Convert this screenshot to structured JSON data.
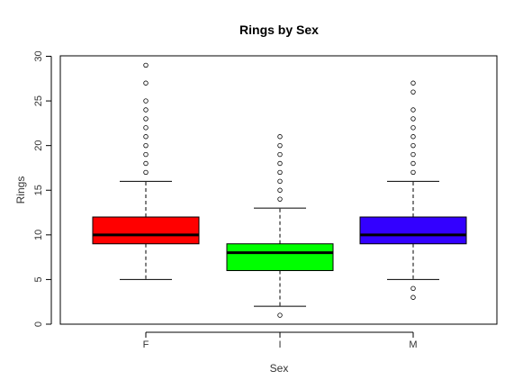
{
  "chart_data": {
    "type": "boxplot",
    "title": "Rings by Sex",
    "xlabel": "Sex",
    "ylabel": "Rings",
    "ylim": [
      0,
      30
    ],
    "yticks": [
      0,
      5,
      10,
      15,
      20,
      25,
      30
    ],
    "categories": [
      "F",
      "I",
      "M"
    ],
    "colors": [
      "#ff0000",
      "#00ff00",
      "#3300ff"
    ],
    "boxes": [
      {
        "category": "F",
        "whisker_low": 5,
        "q1": 9,
        "median": 10,
        "q3": 12,
        "whisker_high": 16,
        "outliers": [
          17,
          18,
          19,
          20,
          21,
          22,
          23,
          24,
          25,
          27,
          29
        ]
      },
      {
        "category": "I",
        "whisker_low": 2,
        "q1": 6,
        "median": 8,
        "q3": 9,
        "whisker_high": 13,
        "outliers": [
          1,
          14,
          15,
          16,
          17,
          18,
          19,
          20,
          21
        ]
      },
      {
        "category": "M",
        "whisker_low": 5,
        "q1": 9,
        "median": 10,
        "q3": 12,
        "whisker_high": 16,
        "outliers": [
          3,
          4,
          17,
          18,
          19,
          20,
          21,
          22,
          23,
          24,
          26,
          27
        ]
      }
    ]
  }
}
